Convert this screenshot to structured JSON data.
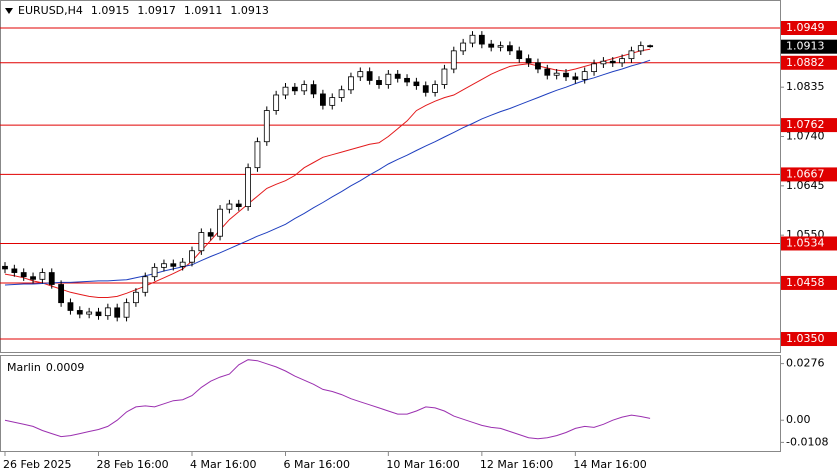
{
  "chart_data": [
    {
      "type": "candlestick",
      "symbol": "EURUSD,H4",
      "categories": [
        "26 Feb 2025",
        null,
        null,
        null,
        null,
        null,
        null,
        null,
        null,
        null,
        "28 Feb 16:00",
        null,
        null,
        null,
        null,
        null,
        null,
        null,
        null,
        null,
        "4 Mar 16:00",
        null,
        null,
        null,
        null,
        null,
        null,
        null,
        null,
        null,
        "6 Mar 16:00",
        null,
        null,
        null,
        null,
        null,
        null,
        null,
        null,
        null,
        null,
        "10 Mar 16:00",
        null,
        null,
        null,
        null,
        null,
        null,
        null,
        null,
        null,
        "12 Mar 16:00",
        null,
        null,
        null,
        null,
        null,
        null,
        null,
        null,
        null,
        "14 Mar 16:00",
        null,
        null,
        null,
        null,
        null,
        null,
        null,
        null
      ],
      "open": [
        1.049,
        1.0485,
        1.0478,
        1.047,
        1.0465,
        1.0478,
        1.0455,
        1.042,
        1.0405,
        1.0398,
        1.0402,
        1.0395,
        1.041,
        1.0392,
        1.042,
        1.044,
        1.047,
        1.0488,
        1.0495,
        1.049,
        1.0498,
        1.052,
        1.0555,
        1.0548,
        1.06,
        1.061,
        1.0605,
        1.068,
        1.073,
        1.079,
        1.082,
        1.0835,
        1.0828,
        1.084,
        1.0822,
        1.08,
        1.0815,
        1.083,
        1.0855,
        1.0865,
        1.0848,
        1.084,
        1.086,
        1.0852,
        1.0845,
        1.0838,
        1.0825,
        1.084,
        1.087,
        1.0905,
        1.092,
        1.0935,
        1.0918,
        1.0912,
        1.0915,
        1.0905,
        1.089,
        1.0882,
        1.087,
        1.0858,
        1.0862,
        1.0855,
        1.085,
        1.0865,
        1.088,
        1.0885,
        1.0882,
        1.089,
        1.0905,
        1.0915
      ],
      "high": [
        1.0498,
        1.0493,
        1.0486,
        1.0478,
        1.0486,
        1.0486,
        1.0463,
        1.0428,
        1.0413,
        1.041,
        1.041,
        1.0418,
        1.0418,
        1.0428,
        1.0448,
        1.0478,
        1.0496,
        1.0503,
        1.0503,
        1.0506,
        1.0528,
        1.0563,
        1.0563,
        1.0608,
        1.0618,
        1.0618,
        1.0688,
        1.0738,
        1.0798,
        1.0828,
        1.0843,
        1.0843,
        1.0848,
        1.0848,
        1.083,
        1.0823,
        1.0838,
        1.0863,
        1.0873,
        1.0873,
        1.0856,
        1.0868,
        1.0868,
        1.086,
        1.0853,
        1.0846,
        1.0848,
        1.0878,
        1.0913,
        1.0928,
        1.0943,
        1.0943,
        1.0926,
        1.0923,
        1.0923,
        1.0913,
        1.0898,
        1.089,
        1.0878,
        1.087,
        1.087,
        1.0863,
        1.0873,
        1.0888,
        1.0893,
        1.0893,
        1.0898,
        1.0913,
        1.0923,
        1.0917
      ],
      "low": [
        1.0477,
        1.047,
        1.0462,
        1.0457,
        1.0457,
        1.0447,
        1.0412,
        1.0397,
        1.039,
        1.039,
        1.0387,
        1.0387,
        1.0384,
        1.0384,
        1.0412,
        1.0432,
        1.0462,
        1.048,
        1.0482,
        1.0482,
        1.049,
        1.0512,
        1.054,
        1.054,
        1.0592,
        1.0597,
        1.0597,
        1.0672,
        1.0722,
        1.0782,
        1.0812,
        1.082,
        1.082,
        1.0814,
        1.0792,
        1.0792,
        1.0807,
        1.0822,
        1.0847,
        1.084,
        1.0832,
        1.0832,
        1.0844,
        1.0837,
        1.083,
        1.0817,
        1.0817,
        1.0832,
        1.0862,
        1.0897,
        1.0912,
        1.091,
        1.0904,
        1.0904,
        1.0897,
        1.0882,
        1.0874,
        1.0862,
        1.085,
        1.085,
        1.0847,
        1.0842,
        1.0842,
        1.0857,
        1.0872,
        1.0874,
        1.0874,
        1.0882,
        1.0897,
        1.0911
      ],
      "close": [
        1.0485,
        1.0478,
        1.047,
        1.0465,
        1.0478,
        1.0455,
        1.042,
        1.0405,
        1.0398,
        1.0402,
        1.0395,
        1.041,
        1.0392,
        1.042,
        1.044,
        1.047,
        1.0488,
        1.0495,
        1.049,
        1.0498,
        1.052,
        1.0555,
        1.0548,
        1.06,
        1.061,
        1.0605,
        1.068,
        1.073,
        1.079,
        1.082,
        1.0835,
        1.0828,
        1.084,
        1.0822,
        1.08,
        1.0815,
        1.083,
        1.0855,
        1.0865,
        1.0848,
        1.084,
        1.086,
        1.0852,
        1.0845,
        1.0838,
        1.0825,
        1.084,
        1.087,
        1.0905,
        1.092,
        1.0935,
        1.0918,
        1.0912,
        1.0915,
        1.0905,
        1.089,
        1.0882,
        1.087,
        1.0858,
        1.0862,
        1.0855,
        1.085,
        1.0865,
        1.088,
        1.0885,
        1.0882,
        1.089,
        1.0905,
        1.0915,
        1.0913
      ],
      "overlays": [
        {
          "color": "#e31a1c",
          "values": [
            1.0475,
            1.0472,
            1.0468,
            1.0462,
            1.0458,
            1.0452,
            1.0446,
            1.044,
            1.0436,
            1.0432,
            1.043,
            1.043,
            1.0432,
            1.0438,
            1.0445,
            1.0452,
            1.046,
            1.0468,
            1.0476,
            1.0485,
            1.05,
            1.052,
            1.054,
            1.056,
            1.058,
            1.0595,
            1.061,
            1.0625,
            1.064,
            1.0648,
            1.0655,
            1.0665,
            1.068,
            1.069,
            1.07,
            1.0705,
            1.071,
            1.0715,
            1.072,
            1.0725,
            1.0728,
            1.074,
            1.0755,
            1.077,
            1.079,
            1.08,
            1.0808,
            1.0815,
            1.082,
            1.083,
            1.084,
            1.085,
            1.086,
            1.0868,
            1.0875,
            1.0878,
            1.088,
            1.0876,
            1.0872,
            1.0868,
            1.0866,
            1.087,
            1.0875,
            1.088,
            1.0885,
            1.089,
            1.0895,
            1.09,
            1.0905,
            1.0908
          ]
        },
        {
          "color": "#1f3fbf",
          "values": [
            1.0454,
            1.0455,
            1.0456,
            1.0456,
            1.0457,
            1.0458,
            1.0459,
            1.0459,
            1.046,
            1.0461,
            1.0462,
            1.0462,
            1.0463,
            1.0464,
            1.0468,
            1.0472,
            1.0476,
            1.0481,
            1.0485,
            1.0489,
            1.0493,
            1.0501,
            1.0509,
            1.0516,
            1.0524,
            1.0532,
            1.054,
            1.0548,
            1.0555,
            1.0563,
            1.0571,
            1.0582,
            1.0592,
            1.0603,
            1.0613,
            1.0624,
            1.0634,
            1.0645,
            1.0655,
            1.0666,
            1.0676,
            1.0687,
            1.0696,
            1.0704,
            1.0713,
            1.0722,
            1.073,
            1.0739,
            1.0748,
            1.0757,
            1.0765,
            1.0774,
            1.0781,
            1.0788,
            1.0794,
            1.0801,
            1.0808,
            1.0815,
            1.0822,
            1.0829,
            1.0835,
            1.0842,
            1.0848,
            1.0853,
            1.0859,
            1.0865,
            1.087,
            1.0876,
            1.0881,
            1.0887
          ]
        }
      ],
      "levels": [
        1.0949,
        1.0882,
        1.0762,
        1.0667,
        1.0534,
        1.0458,
        {
          "value": 1.035,
          "label": "1.0350"
        }
      ],
      "level_color": "#e00000",
      "ylim": [
        1.0325,
        1.1001
      ],
      "yticks": [
        1.0835,
        {
          "value": 1.074,
          "label": "1.0740"
        },
        1.0645,
        {
          "value": 1.055,
          "label": "1.0550"
        }
      ]
    },
    {
      "type": "line",
      "name": "Marlin",
      "color": "#9b30b0",
      "values": [
        0.0,
        -0.001,
        -0.002,
        -0.003,
        -0.005,
        -0.0065,
        -0.008,
        -0.0075,
        -0.0065,
        -0.0055,
        -0.0045,
        -0.003,
        0.0,
        0.004,
        0.0065,
        0.007,
        0.0065,
        0.008,
        0.0095,
        0.01,
        0.012,
        0.016,
        0.019,
        0.021,
        0.0225,
        0.027,
        0.0295,
        0.029,
        0.0275,
        0.026,
        0.024,
        0.0215,
        0.0195,
        0.0175,
        0.015,
        0.014,
        0.0125,
        0.0105,
        0.009,
        0.0075,
        0.006,
        0.0045,
        0.003,
        0.003,
        0.0045,
        0.0065,
        0.006,
        0.0045,
        0.002,
        0.0005,
        -0.001,
        -0.0025,
        -0.0035,
        -0.004,
        -0.0055,
        -0.007,
        -0.0085,
        -0.009,
        -0.0085,
        -0.0075,
        -0.006,
        -0.004,
        -0.003,
        -0.0035,
        -0.002,
        0.0,
        0.0015,
        0.0025,
        0.0018,
        0.0009
      ],
      "ylim": [
        -0.015,
        0.0313
      ],
      "yticks": [
        0.0276,
        {
          "value": 0,
          "label": "0.00"
        },
        -0.0108
      ]
    }
  ]
}
